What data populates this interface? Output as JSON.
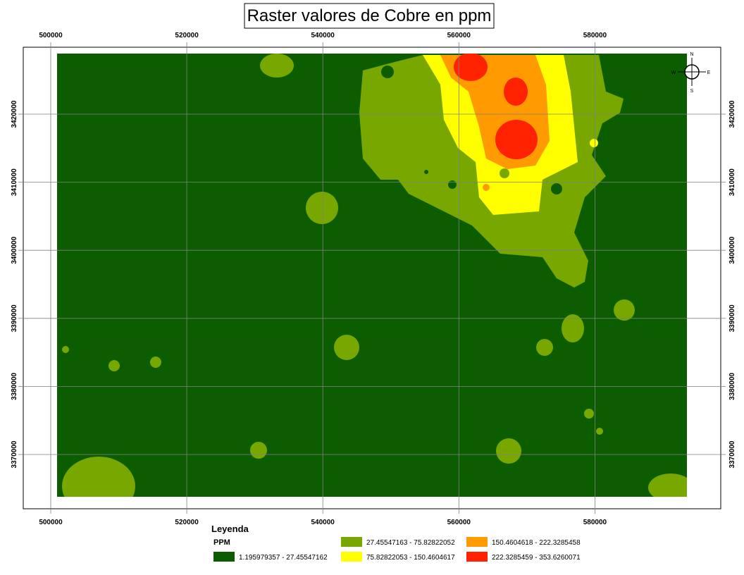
{
  "title": "Raster valores de Cobre en ppm",
  "x_axis_labels": [
    "500000",
    "520000",
    "540000",
    "560000",
    "580000"
  ],
  "y_axis_labels": [
    "3370000",
    "3380000",
    "3390000",
    "3400000",
    "3410000",
    "3420000"
  ],
  "compass": {
    "north": "N",
    "south": "S",
    "east": "E",
    "west": "W"
  },
  "legend": {
    "title": "Leyenda",
    "field": "PPM",
    "classes": [
      {
        "label": "1.195979357 - 27.45547162",
        "color": "#0b5d00"
      },
      {
        "label": "27.45547163 - 75.82822052",
        "color": "#78a800"
      },
      {
        "label": "75.82822053 - 150.4604617",
        "color": "#ffff00"
      },
      {
        "label": "150.4604618 - 222.3285458",
        "color": "#ff9a00"
      },
      {
        "label": "222.3285459 - 353.6260071",
        "color": "#ff2200"
      }
    ]
  }
}
